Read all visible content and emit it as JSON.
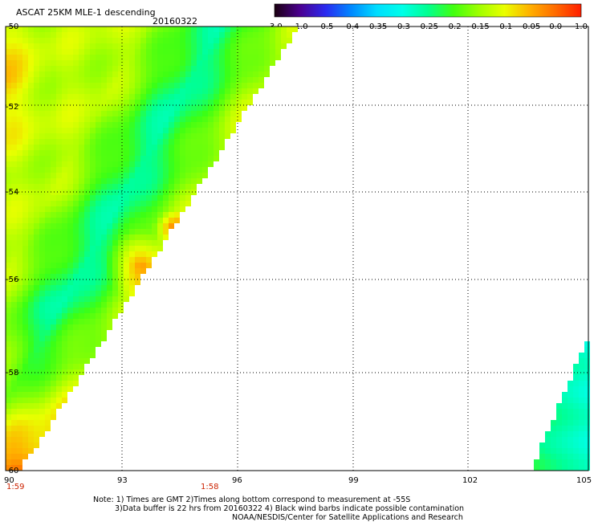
{
  "header": {
    "title": "ASCAT 25KM MLE-1 descending",
    "date": "20160322"
  },
  "colorbar": {
    "labels": [
      "-3.0",
      "-1.0",
      "-0.5",
      "-0.4",
      "-0.35",
      "-0.3",
      "-0.25",
      "-0.2",
      "-0.15",
      "-0.1",
      "-0.05",
      "0.0",
      "1.0"
    ],
    "colors": [
      "#1a0010",
      "#4b0090",
      "#2a2af0",
      "#0088ff",
      "#00ddff",
      "#00ffe8",
      "#00ff90",
      "#40ff10",
      "#a0ff00",
      "#eaff00",
      "#ffb000",
      "#ff6a00",
      "#ff1e00"
    ]
  },
  "map": {
    "lat_labels": [
      "-50",
      "-52",
      "-54",
      "-56",
      "-58",
      "-60"
    ],
    "lon_labels": [
      "90",
      "93",
      "96",
      "99",
      "102",
      "105"
    ],
    "lat_range": [
      -60,
      -50
    ],
    "lon_range": [
      90,
      105
    ],
    "grid": true
  },
  "times": {
    "left": "1:59",
    "mid": "1:58",
    "color": "#cc2200"
  },
  "notes": {
    "line1": "Note: 1) Times are GMT 2)Times along bottom correspond to measurement at -55S",
    "line2": "3)Data buffer is 22 hrs from 20160322 4) Black wind barbs indicate possible contamination",
    "line3": "NOAA/NESDIS/Center for Satellite Applications and Research"
  }
}
